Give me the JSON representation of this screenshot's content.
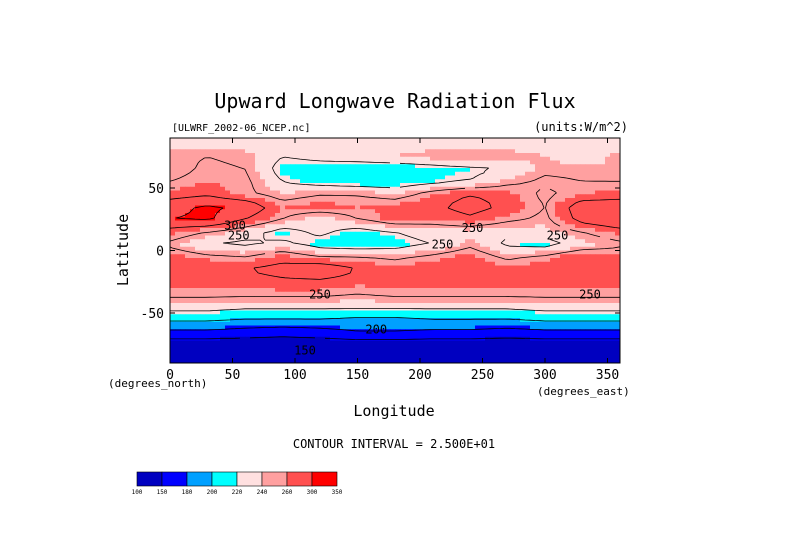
{
  "chart_data": {
    "type": "heatmap",
    "title": "Upward Longwave Radiation Flux",
    "source_label": "[ULWRF_2002-06_NCEP.nc]",
    "units_label": "(units:W/m^2)",
    "xlabel": "Longitude",
    "ylabel": "Latitude",
    "x_unit_label": "(degrees_east)",
    "y_unit_label": "(degrees_north)",
    "xlim": [
      0,
      360
    ],
    "ylim": [
      -90,
      90
    ],
    "x_ticks": [
      0,
      50,
      100,
      150,
      200,
      250,
      300,
      350
    ],
    "y_ticks": [
      50,
      0,
      -50
    ],
    "contour_interval_text": "CONTOUR INTERVAL = 2.500E+01",
    "contour_labels": [
      {
        "text": "300",
        "lon": 52,
        "lat": 20
      },
      {
        "text": "250",
        "lon": 55,
        "lat": 12
      },
      {
        "text": "250",
        "lon": 218,
        "lat": 5
      },
      {
        "text": "250",
        "lon": 242,
        "lat": 18
      },
      {
        "text": "250",
        "lon": 310,
        "lat": 12
      },
      {
        "text": "250",
        "lon": 120,
        "lat": -35
      },
      {
        "text": "250",
        "lon": 336,
        "lat": -35
      },
      {
        "text": "200",
        "lon": 165,
        "lat": -63
      },
      {
        "text": "150",
        "lon": 108,
        "lat": -80
      }
    ],
    "colorbar": {
      "levels": [
        "100",
        "150",
        "180",
        "200",
        "220",
        "240",
        "260",
        "300",
        "350"
      ],
      "colors": [
        "#0000c0",
        "#0000ff",
        "#00a0ff",
        "#00ffff",
        "#ffe0e0",
        "#ffa0a0",
        "#ff5050",
        "#ff0000"
      ]
    },
    "values_W_m2": {
      "note_rows": "latitude rows from 85 to -85 step 10",
      "lats": [
        85,
        75,
        65,
        55,
        45,
        35,
        25,
        15,
        5,
        -5,
        -15,
        -25,
        -35,
        -45,
        -55,
        -65,
        -75,
        -85
      ],
      "lons": [
        0,
        30,
        60,
        90,
        120,
        150,
        180,
        210,
        240,
        270,
        300,
        330,
        360
      ],
      "grid": [
        [
          235,
          235,
          235,
          235,
          235,
          235,
          235,
          235,
          235,
          235,
          235,
          235,
          235
        ],
        [
          245,
          250,
          245,
          225,
          230,
          235,
          240,
          245,
          250,
          245,
          240,
          230,
          245
        ],
        [
          240,
          255,
          250,
          215,
          215,
          210,
          210,
          215,
          220,
          225,
          245,
          245,
          240
        ],
        [
          250,
          260,
          255,
          225,
          215,
          210,
          210,
          220,
          225,
          245,
          255,
          250,
          250
        ],
        [
          265,
          270,
          255,
          240,
          250,
          250,
          240,
          260,
          275,
          265,
          245,
          260,
          265
        ],
        [
          290,
          305,
          295,
          260,
          265,
          260,
          265,
          270,
          285,
          270,
          250,
          290,
          290
        ],
        [
          300,
          305,
          275,
          250,
          230,
          250,
          265,
          260,
          270,
          255,
          245,
          285,
          300
        ],
        [
          265,
          250,
          235,
          215,
          230,
          215,
          225,
          235,
          235,
          230,
          235,
          250,
          265
        ],
        [
          245,
          225,
          220,
          230,
          215,
          210,
          215,
          225,
          245,
          220,
          215,
          235,
          245
        ],
        [
          265,
          255,
          250,
          265,
          250,
          250,
          245,
          255,
          265,
          245,
          255,
          270,
          265
        ],
        [
          270,
          275,
          275,
          285,
          295,
          275,
          265,
          270,
          275,
          265,
          270,
          275,
          270
        ],
        [
          265,
          265,
          265,
          270,
          270,
          265,
          265,
          265,
          265,
          265,
          265,
          265,
          265
        ],
        [
          255,
          255,
          255,
          255,
          255,
          250,
          255,
          255,
          255,
          255,
          255,
          255,
          255
        ],
        [
          235,
          235,
          230,
          230,
          230,
          230,
          230,
          230,
          230,
          230,
          235,
          235,
          235
        ],
        [
          205,
          205,
          200,
          200,
          200,
          195,
          195,
          200,
          200,
          200,
          205,
          205,
          205
        ],
        [
          170,
          170,
          165,
          160,
          165,
          175,
          175,
          170,
          170,
          165,
          170,
          170,
          170
        ],
        [
          135,
          135,
          135,
          135,
          135,
          135,
          135,
          135,
          135,
          135,
          135,
          135,
          135
        ],
        [
          120,
          120,
          120,
          120,
          120,
          120,
          120,
          120,
          120,
          120,
          120,
          120,
          120
        ]
      ]
    }
  }
}
